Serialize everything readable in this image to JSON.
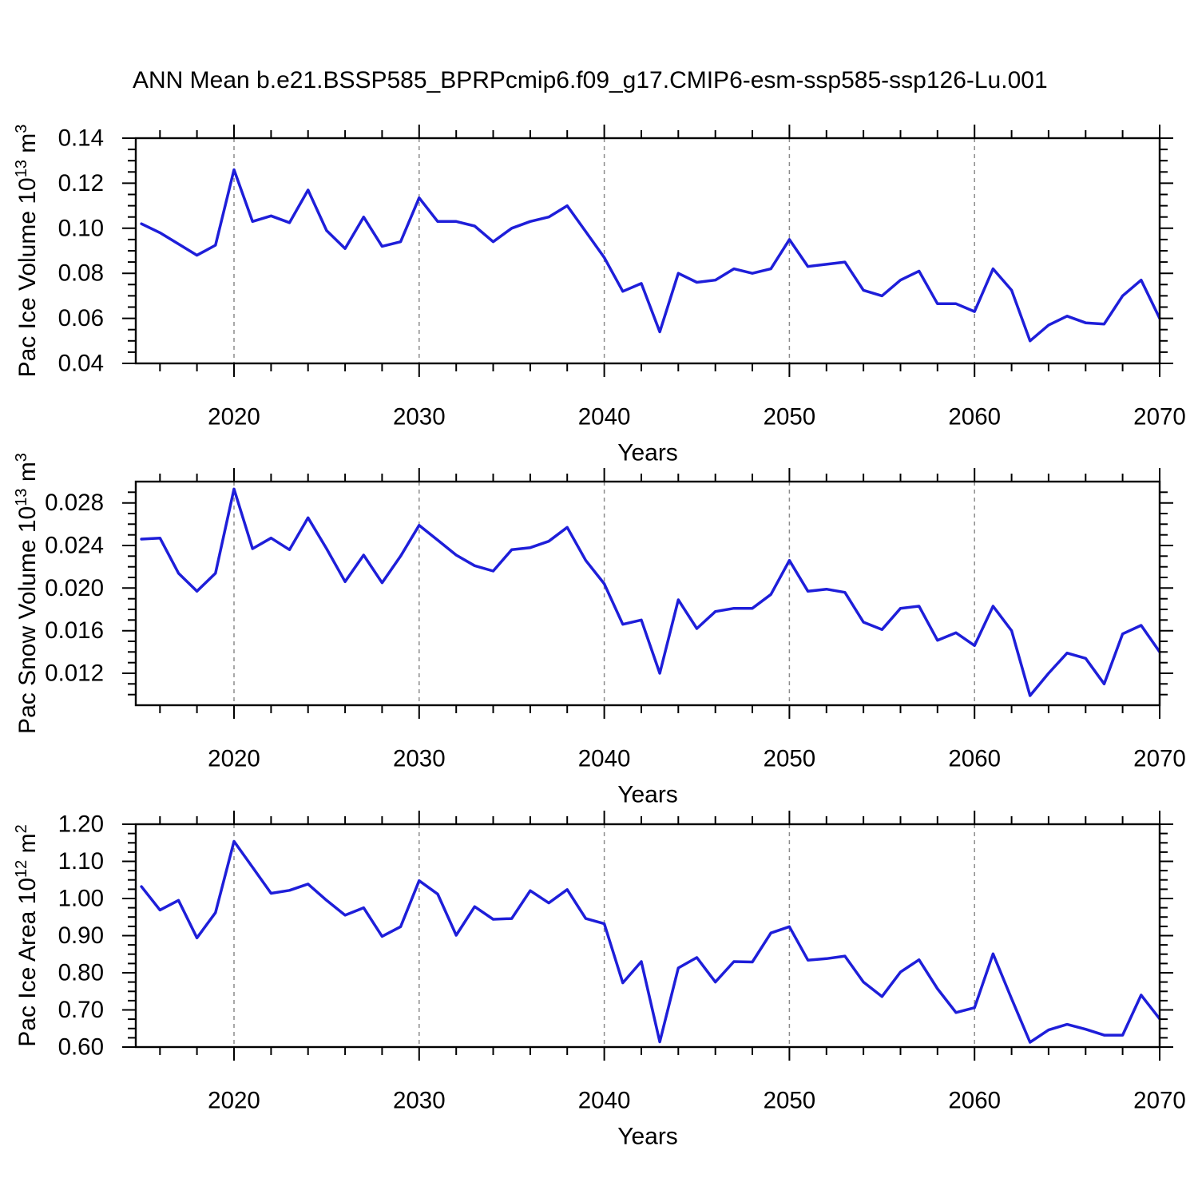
{
  "title": "ANN Mean b.e21.BSSP585_BPRPcmip6.f09_g17.CMIP6-esm-ssp585-ssp126-Lu.001",
  "colors": {
    "line": "#1e1ed9",
    "frame": "#000000",
    "grid": "#8c8c8c",
    "text": "#000000",
    "background": "#ffffff"
  },
  "x_axis": {
    "label": "Years",
    "start": 2015,
    "end": 2070,
    "years": [
      2015,
      2016,
      2017,
      2018,
      2019,
      2020,
      2021,
      2022,
      2023,
      2024,
      2025,
      2026,
      2027,
      2028,
      2029,
      2030,
      2031,
      2032,
      2033,
      2034,
      2035,
      2036,
      2037,
      2038,
      2039,
      2040,
      2041,
      2042,
      2043,
      2044,
      2045,
      2046,
      2047,
      2048,
      2049,
      2050,
      2051,
      2052,
      2053,
      2054,
      2055,
      2056,
      2057,
      2058,
      2059,
      2060,
      2061,
      2062,
      2063,
      2064,
      2065,
      2066,
      2067,
      2068,
      2069,
      2070
    ],
    "tick_years": [
      2020,
      2030,
      2040,
      2050,
      2060,
      2070
    ],
    "tick_labels": [
      "2020",
      "2030",
      "2040",
      "2050",
      "2060",
      "2070"
    ],
    "minor_step": 2,
    "grid_years": [
      2020,
      2030,
      2040,
      2050,
      2060
    ]
  },
  "chart_data": [
    {
      "type": "line",
      "id": "pac-ice-volume",
      "ylabel_text": "Pac Ice Volume 10^13 m^3",
      "ylabel_parts": [
        {
          "t": "Pac Ice Volume 10"
        },
        {
          "t": "13",
          "sup": true
        },
        {
          "t": " m"
        },
        {
          "t": "3",
          "sup": true
        }
      ],
      "ylim": [
        0.04,
        0.14
      ],
      "ytick_values": [
        0.14,
        0.12,
        0.1,
        0.08,
        0.06,
        0.04
      ],
      "ytick_labels": [
        "0.14",
        "0.12",
        "0.10",
        "0.08",
        "0.06",
        "0.04"
      ],
      "yminor_step": 0.005,
      "grid": "vertical-dashed",
      "legend": "none",
      "values": [
        0.102,
        0.098,
        0.093,
        0.088,
        0.0925,
        0.126,
        0.103,
        0.1055,
        0.1025,
        0.117,
        0.099,
        0.091,
        0.105,
        0.092,
        0.094,
        0.1135,
        0.103,
        0.103,
        0.101,
        0.094,
        0.1,
        0.103,
        0.105,
        0.11,
        0.0985,
        0.087,
        0.072,
        0.0755,
        0.054,
        0.08,
        0.076,
        0.077,
        0.082,
        0.08,
        0.082,
        0.095,
        0.083,
        0.084,
        0.085,
        0.0725,
        0.07,
        0.077,
        0.081,
        0.0665,
        0.0665,
        0.063,
        0.082,
        0.0725,
        0.05,
        0.057,
        0.061,
        0.058,
        0.0575,
        0.07,
        0.077,
        0.06
      ]
    },
    {
      "type": "line",
      "id": "pac-snow-volume",
      "ylabel_text": "Pac Snow Volume 10^13 m^3",
      "ylabel_parts": [
        {
          "t": "Pac Snow Volume 10"
        },
        {
          "t": "13",
          "sup": true
        },
        {
          "t": " m"
        },
        {
          "t": "3",
          "sup": true
        }
      ],
      "ylim": [
        0.009,
        0.03
      ],
      "ytick_values": [
        0.028,
        0.024,
        0.02,
        0.016,
        0.012
      ],
      "ytick_labels": [
        "0.028",
        "0.024",
        "0.020",
        "0.016",
        "0.012"
      ],
      "yminor_step": 0.001,
      "grid": "vertical-dashed",
      "legend": "none",
      "values": [
        0.0246,
        0.0247,
        0.0214,
        0.0197,
        0.0214,
        0.0293,
        0.0237,
        0.0247,
        0.0236,
        0.0266,
        0.0237,
        0.0206,
        0.0231,
        0.0205,
        0.023,
        0.0259,
        0.0245,
        0.0231,
        0.0221,
        0.0216,
        0.0236,
        0.0238,
        0.0244,
        0.0257,
        0.0226,
        0.0204,
        0.0166,
        0.017,
        0.012,
        0.0189,
        0.0162,
        0.0178,
        0.0181,
        0.0181,
        0.0194,
        0.0226,
        0.0197,
        0.0199,
        0.0196,
        0.0168,
        0.0161,
        0.0181,
        0.0183,
        0.0151,
        0.0158,
        0.0146,
        0.0183,
        0.016,
        0.0099,
        0.012,
        0.0139,
        0.0134,
        0.011,
        0.0157,
        0.0165,
        0.014
      ]
    },
    {
      "type": "line",
      "id": "pac-ice-area",
      "ylabel_text": "Pac Ice Area 10^12 m^2",
      "ylabel_parts": [
        {
          "t": "Pac Ice Area 10"
        },
        {
          "t": "12",
          "sup": true
        },
        {
          "t": " m"
        },
        {
          "t": "2",
          "sup": true
        }
      ],
      "ylim": [
        0.6,
        1.2
      ],
      "ytick_values": [
        1.2,
        1.1,
        1.0,
        0.9,
        0.8,
        0.7,
        0.6
      ],
      "ytick_labels": [
        "1.20",
        "1.10",
        "1.00",
        "0.90",
        "0.80",
        "0.70",
        "0.60"
      ],
      "yminor_step": 0.025,
      "grid": "vertical-dashed",
      "legend": "none",
      "values": [
        1.032,
        0.969,
        0.995,
        0.894,
        0.962,
        1.154,
        1.084,
        1.014,
        1.022,
        1.039,
        0.995,
        0.955,
        0.975,
        0.898,
        0.924,
        1.048,
        1.012,
        0.901,
        0.978,
        0.944,
        0.946,
        1.021,
        0.988,
        1.024,
        0.946,
        0.932,
        0.773,
        0.83,
        0.614,
        0.813,
        0.841,
        0.775,
        0.83,
        0.829,
        0.907,
        0.924,
        0.834,
        0.838,
        0.845,
        0.775,
        0.736,
        0.802,
        0.835,
        0.757,
        0.693,
        0.706,
        0.851,
        0.73,
        0.613,
        0.646,
        0.661,
        0.648,
        0.632,
        0.632,
        0.74,
        0.676
      ]
    }
  ]
}
